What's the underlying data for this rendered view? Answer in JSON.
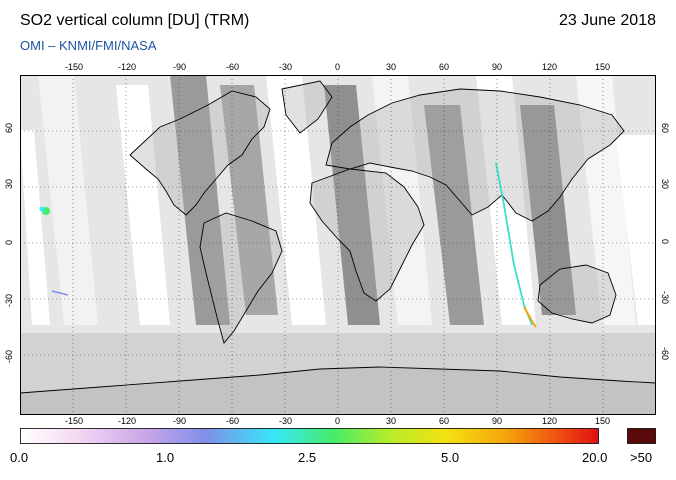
{
  "header": {
    "title": "SO2 vertical column [DU] (TRM)",
    "date": "23 June 2018",
    "credit": "OMI  –  KNMI/FMI/NASA"
  },
  "map": {
    "lon_ticks": [
      "-150",
      "-120",
      "-90",
      "-60",
      "-30",
      "0",
      "30",
      "60",
      "90",
      "120",
      "150"
    ],
    "lat_ticks": [
      "60",
      "30",
      "0",
      "-30",
      "-60"
    ]
  },
  "colorbar": {
    "labels": [
      "0.0",
      "1.0",
      "2.5",
      "5.0",
      "20.0"
    ],
    "overflow_label": ">50",
    "colors": [
      "#ffffff",
      "#f3d8f3",
      "#c8a4e8",
      "#7f8fe8",
      "#36e8f8",
      "#44ec6a",
      "#b8ec2a",
      "#f4e010",
      "#f4a40a",
      "#f05010",
      "#e01010",
      "#5a0a0a"
    ]
  }
}
